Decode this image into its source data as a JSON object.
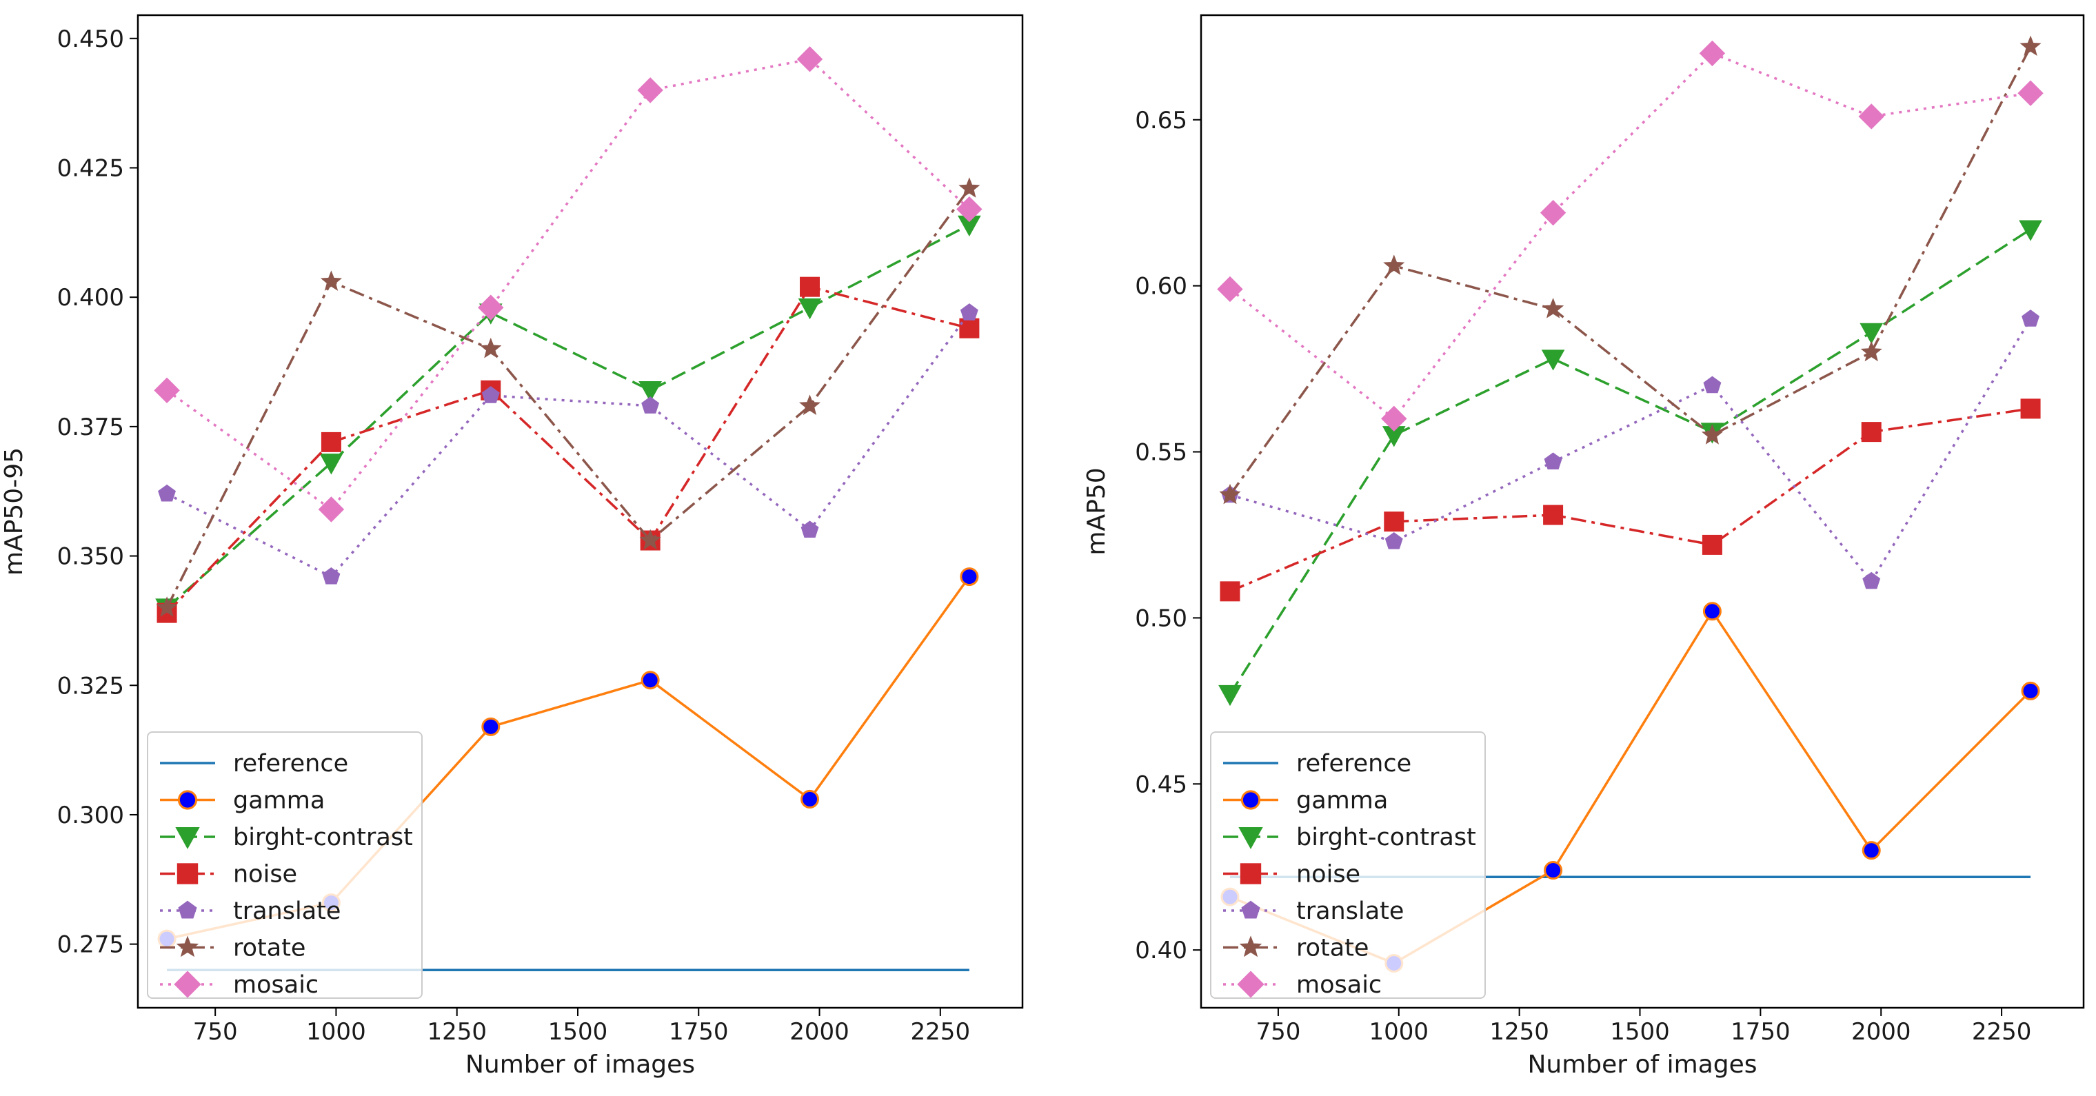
{
  "legend": {
    "placement": "lower-left",
    "entries": [
      {
        "key": "reference",
        "label": "reference"
      },
      {
        "key": "gamma",
        "label": "gamma"
      },
      {
        "key": "bright",
        "label": "birght-contrast"
      },
      {
        "key": "noise",
        "label": "noise"
      },
      {
        "key": "translate",
        "label": "translate"
      },
      {
        "key": "rotate",
        "label": "rotate"
      },
      {
        "key": "mosaic",
        "label": "mosaic"
      }
    ]
  },
  "styles": {
    "reference": {
      "color": "#1f77b4",
      "dash": "solid",
      "marker": "none"
    },
    "gamma": {
      "color": "#ff7f0e",
      "dash": "solid",
      "marker": "circle",
      "marker_fill": "#0000ff",
      "marker_edge": "#ff7f0e"
    },
    "bright": {
      "color": "#2ca02c",
      "dash": "dashed",
      "marker": "triangle-down"
    },
    "noise": {
      "color": "#d62728",
      "dash": "dashdot",
      "marker": "square"
    },
    "translate": {
      "color": "#9467bd",
      "dash": "dotted",
      "marker": "pentagon"
    },
    "rotate": {
      "color": "#8c564b",
      "dash": "dashdot",
      "marker": "star"
    },
    "mosaic": {
      "color": "#e377c2",
      "dash": "dotted",
      "marker": "diamond"
    }
  },
  "chart_data": [
    {
      "type": "line",
      "xlabel": "Number of images",
      "ylabel": "mAP50-95",
      "xlim": [
        590,
        2420
      ],
      "ylim": [
        0.2627,
        0.4545
      ],
      "xticks": [
        750,
        1000,
        1250,
        1500,
        1750,
        2000,
        2250
      ],
      "yticks": [
        0.275,
        0.3,
        0.325,
        0.35,
        0.375,
        0.4,
        0.425,
        0.45
      ],
      "x": [
        650,
        990,
        1320,
        1650,
        1980,
        2310
      ],
      "series": [
        {
          "key": "reference",
          "name": "reference",
          "values": [
            0.27,
            0.27,
            0.27,
            0.27,
            0.27,
            0.27
          ]
        },
        {
          "key": "gamma",
          "name": "gamma",
          "values": [
            0.276,
            0.283,
            0.317,
            0.326,
            0.303,
            0.346
          ]
        },
        {
          "key": "bright",
          "name": "birght-contrast",
          "values": [
            0.34,
            0.368,
            0.397,
            0.382,
            0.398,
            0.414
          ]
        },
        {
          "key": "noise",
          "name": "noise",
          "values": [
            0.339,
            0.372,
            0.382,
            0.353,
            0.402,
            0.394
          ]
        },
        {
          "key": "translate",
          "name": "translate",
          "values": [
            0.362,
            0.346,
            0.381,
            0.379,
            0.355,
            0.397
          ]
        },
        {
          "key": "rotate",
          "name": "rotate",
          "values": [
            0.34,
            0.403,
            0.39,
            0.353,
            0.379,
            0.421
          ]
        },
        {
          "key": "mosaic",
          "name": "mosaic",
          "values": [
            0.382,
            0.359,
            0.398,
            0.44,
            0.446,
            0.417
          ]
        }
      ]
    },
    {
      "type": "line",
      "xlabel": "Number of images",
      "ylabel": "mAP50",
      "xlim": [
        590,
        2420
      ],
      "ylim": [
        0.3826,
        0.6815
      ],
      "xticks": [
        750,
        1000,
        1250,
        1500,
        1750,
        2000,
        2250
      ],
      "yticks": [
        0.4,
        0.45,
        0.5,
        0.55,
        0.6,
        0.65
      ],
      "x": [
        650,
        990,
        1320,
        1650,
        1980,
        2310
      ],
      "series": [
        {
          "key": "reference",
          "name": "reference",
          "values": [
            0.422,
            0.422,
            0.422,
            0.422,
            0.422,
            0.422
          ]
        },
        {
          "key": "gamma",
          "name": "gamma",
          "values": [
            0.416,
            0.396,
            0.424,
            0.502,
            0.43,
            0.478
          ]
        },
        {
          "key": "bright",
          "name": "birght-contrast",
          "values": [
            0.477,
            0.555,
            0.578,
            0.556,
            0.586,
            0.617
          ]
        },
        {
          "key": "noise",
          "name": "noise",
          "values": [
            0.508,
            0.529,
            0.531,
            0.522,
            0.556,
            0.563
          ]
        },
        {
          "key": "translate",
          "name": "translate",
          "values": [
            0.537,
            0.523,
            0.547,
            0.57,
            0.511,
            0.59
          ]
        },
        {
          "key": "rotate",
          "name": "rotate",
          "values": [
            0.537,
            0.606,
            0.593,
            0.555,
            0.58,
            0.672
          ]
        },
        {
          "key": "mosaic",
          "name": "mosaic",
          "values": [
            0.599,
            0.56,
            0.622,
            0.67,
            0.651,
            0.658
          ]
        }
      ]
    }
  ]
}
